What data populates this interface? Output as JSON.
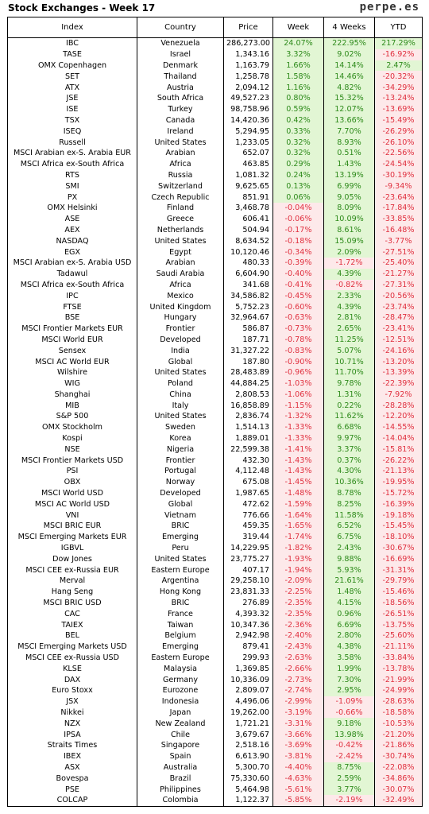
{
  "header": {
    "title": "Stock Exchanges - Week 17",
    "brand": "perpe.es"
  },
  "columns": [
    "Index",
    "Country",
    "Price",
    "Week",
    "4 Weeks",
    "YTD"
  ],
  "colors": {
    "positive_bg": "#e2f6d4",
    "positive_text": "#2d8a1a",
    "negative_bg": "#fde9ea",
    "negative_text": "#e0303f"
  },
  "rows": [
    [
      "IBC",
      "Venezuela",
      "286,273.00",
      "24.07%",
      "222.95%",
      "217.29%"
    ],
    [
      "TASE",
      "Israel",
      "1,343.16",
      "3.32%",
      "9.02%",
      "-16.92%"
    ],
    [
      "OMX Copenhagen",
      "Denmark",
      "1,163.79",
      "1.66%",
      "14.14%",
      "2.47%"
    ],
    [
      "SET",
      "Thailand",
      "1,258.78",
      "1.58%",
      "14.46%",
      "-20.32%"
    ],
    [
      "ATX",
      "Austria",
      "2,094.12",
      "1.16%",
      "4.82%",
      "-34.29%"
    ],
    [
      "JSE",
      "South Africa",
      "49,527.23",
      "0.80%",
      "15.32%",
      "-13.24%"
    ],
    [
      "ISE",
      "Turkey",
      "98,758.96",
      "0.59%",
      "12.07%",
      "-13.69%"
    ],
    [
      "TSX",
      "Canada",
      "14,420.36",
      "0.42%",
      "13.66%",
      "-15.49%"
    ],
    [
      "ISEQ",
      "Ireland",
      "5,294.95",
      "0.33%",
      "7.70%",
      "-26.29%"
    ],
    [
      "Russell",
      "United States",
      "1,233.05",
      "0.32%",
      "8.93%",
      "-26.10%"
    ],
    [
      "MSCI Arabian ex-S. Arabia EUR",
      "Arabian",
      "652.07",
      "0.32%",
      "0.51%",
      "-22.56%"
    ],
    [
      "MSCI Africa ex-South Africa",
      "Africa",
      "463.85",
      "0.29%",
      "1.43%",
      "-24.54%"
    ],
    [
      "RTS",
      "Russia",
      "1,081.32",
      "0.24%",
      "13.19%",
      "-30.19%"
    ],
    [
      "SMI",
      "Switzerland",
      "9,625.65",
      "0.13%",
      "6.99%",
      "-9.34%"
    ],
    [
      "PX",
      "Czech Republic",
      "851.91",
      "0.06%",
      "9.05%",
      "-23.64%"
    ],
    [
      "OMX Helsinki",
      "Finland",
      "3,468.78",
      "-0.04%",
      "8.09%",
      "-17.84%"
    ],
    [
      "ASE",
      "Greece",
      "606.41",
      "-0.06%",
      "10.09%",
      "-33.85%"
    ],
    [
      "AEX",
      "Netherlands",
      "504.94",
      "-0.17%",
      "8.61%",
      "-16.48%"
    ],
    [
      "NASDAQ",
      "United States",
      "8,634.52",
      "-0.18%",
      "15.09%",
      "-3.77%"
    ],
    [
      "EGX",
      "Egypt",
      "10,120.46",
      "-0.34%",
      "2.09%",
      "-27.51%"
    ],
    [
      "MSCI Arabian ex-S. Arabia USD",
      "Arabian",
      "480.33",
      "-0.39%",
      "-1.72%",
      "-25.40%"
    ],
    [
      "Tadawul",
      "Saudi Arabia",
      "6,604.90",
      "-0.40%",
      "4.39%",
      "-21.27%"
    ],
    [
      "MSCI Africa ex-South Africa",
      "Africa",
      "341.68",
      "-0.41%",
      "-0.82%",
      "-27.31%"
    ],
    [
      "IPC",
      "Mexico",
      "34,586.82",
      "-0.45%",
      "2.33%",
      "-20.56%"
    ],
    [
      "FTSE",
      "United Kingdom",
      "5,752.23",
      "-0.60%",
      "4.39%",
      "-23.74%"
    ],
    [
      "BSE",
      "Hungary",
      "32,964.67",
      "-0.63%",
      "2.81%",
      "-28.47%"
    ],
    [
      "MSCI Frontier Markets EUR",
      "Frontier",
      "586.87",
      "-0.73%",
      "2.65%",
      "-23.41%"
    ],
    [
      "MSCI World EUR",
      "Developed",
      "187.71",
      "-0.78%",
      "11.25%",
      "-12.51%"
    ],
    [
      "Sensex",
      "India",
      "31,327.22",
      "-0.83%",
      "5.07%",
      "-24.16%"
    ],
    [
      "MSCI AC World EUR",
      "Global",
      "187.80",
      "-0.90%",
      "10.71%",
      "-13.20%"
    ],
    [
      "Wilshire",
      "United States",
      "28,483.89",
      "-0.96%",
      "11.70%",
      "-13.39%"
    ],
    [
      "WIG",
      "Poland",
      "44,884.25",
      "-1.03%",
      "9.78%",
      "-22.39%"
    ],
    [
      "Shanghai",
      "China",
      "2,808.53",
      "-1.06%",
      "1.31%",
      "-7.92%"
    ],
    [
      "MIB",
      "Italy",
      "16,858.89",
      "-1.15%",
      "0.22%",
      "-28.28%"
    ],
    [
      "S&P 500",
      "United States",
      "2,836.74",
      "-1.32%",
      "11.62%",
      "-12.20%"
    ],
    [
      "OMX Stockholm",
      "Sweden",
      "1,514.13",
      "-1.33%",
      "6.68%",
      "-14.55%"
    ],
    [
      "Kospi",
      "Korea",
      "1,889.01",
      "-1.33%",
      "9.97%",
      "-14.04%"
    ],
    [
      "NSE",
      "Nigeria",
      "22,599.38",
      "-1.41%",
      "3.37%",
      "-15.81%"
    ],
    [
      "MSCI Frontier Markets USD",
      "Frontier",
      "432.30",
      "-1.43%",
      "0.37%",
      "-26.22%"
    ],
    [
      "PSI",
      "Portugal",
      "4,112.48",
      "-1.43%",
      "4.30%",
      "-21.13%"
    ],
    [
      "OBX",
      "Norway",
      "675.08",
      "-1.45%",
      "10.36%",
      "-19.95%"
    ],
    [
      "MSCI World USD",
      "Developed",
      "1,987.65",
      "-1.48%",
      "8.78%",
      "-15.72%"
    ],
    [
      "MSCI AC World USD",
      "Global",
      "472.62",
      "-1.59%",
      "8.25%",
      "-16.39%"
    ],
    [
      "VNI",
      "Vietnam",
      "776.66",
      "-1.64%",
      "11.58%",
      "-19.18%"
    ],
    [
      "MSCI BRIC EUR",
      "BRIC",
      "459.35",
      "-1.65%",
      "6.52%",
      "-15.45%"
    ],
    [
      "MSCI Emerging Markets EUR",
      "Emerging",
      "319.44",
      "-1.74%",
      "6.75%",
      "-18.10%"
    ],
    [
      "IGBVL",
      "Peru",
      "14,229.95",
      "-1.82%",
      "2.43%",
      "-30.67%"
    ],
    [
      "Dow Jones",
      "United States",
      "23,775.27",
      "-1.93%",
      "9.88%",
      "-16.69%"
    ],
    [
      "MSCI CEE ex-Russia EUR",
      "Eastern Europe",
      "407.17",
      "-1.94%",
      "5.93%",
      "-31.31%"
    ],
    [
      "Merval",
      "Argentina",
      "29,258.10",
      "-2.09%",
      "21.61%",
      "-29.79%"
    ],
    [
      "Hang Seng",
      "Hong Kong",
      "23,831.33",
      "-2.25%",
      "1.48%",
      "-15.46%"
    ],
    [
      "MSCI BRIC USD",
      "BRIC",
      "276.89",
      "-2.35%",
      "4.15%",
      "-18.56%"
    ],
    [
      "CAC",
      "France",
      "4,393.32",
      "-2.35%",
      "0.96%",
      "-26.51%"
    ],
    [
      "TAIEX",
      "Taiwan",
      "10,347.36",
      "-2.36%",
      "6.69%",
      "-13.75%"
    ],
    [
      "BEL",
      "Belgium",
      "2,942.98",
      "-2.40%",
      "2.80%",
      "-25.60%"
    ],
    [
      "MSCI Emerging Markets USD",
      "Emerging",
      "879.41",
      "-2.43%",
      "4.38%",
      "-21.11%"
    ],
    [
      "MSCI CEE ex-Russia USD",
      "Eastern Europe",
      "299.93",
      "-2.63%",
      "3.58%",
      "-33.84%"
    ],
    [
      "KLSE",
      "Malaysia",
      "1,369.85",
      "-2.66%",
      "1.99%",
      "-13.78%"
    ],
    [
      "DAX",
      "Germany",
      "10,336.09",
      "-2.73%",
      "7.30%",
      "-21.99%"
    ],
    [
      "Euro Stoxx",
      "Eurozone",
      "2,809.07",
      "-2.74%",
      "2.95%",
      "-24.99%"
    ],
    [
      "JSX",
      "Indonesia",
      "4,496.06",
      "-2.99%",
      "-1.09%",
      "-28.63%"
    ],
    [
      "Nikkei",
      "Japan",
      "19,262.00",
      "-3.19%",
      "-0.66%",
      "-18.58%"
    ],
    [
      "NZX",
      "New Zealand",
      "1,721.21",
      "-3.31%",
      "9.18%",
      "-10.53%"
    ],
    [
      "IPSA",
      "Chile",
      "3,679.67",
      "-3.66%",
      "13.98%",
      "-21.20%"
    ],
    [
      "Straits Times",
      "Singapore",
      "2,518.16",
      "-3.69%",
      "-0.42%",
      "-21.86%"
    ],
    [
      "IBEX",
      "Spain",
      "6,613.90",
      "-3.81%",
      "-2.42%",
      "-30.74%"
    ],
    [
      "ASX",
      "Australia",
      "5,300.70",
      "-4.40%",
      "8.75%",
      "-22.08%"
    ],
    [
      "Bovespa",
      "Brazil",
      "75,330.60",
      "-4.63%",
      "2.59%",
      "-34.86%"
    ],
    [
      "PSE",
      "Philippines",
      "5,464.98",
      "-5.61%",
      "3.77%",
      "-30.07%"
    ],
    [
      "COLCAP",
      "Colombia",
      "1,122.37",
      "-5.85%",
      "-2.19%",
      "-32.49%"
    ]
  ]
}
